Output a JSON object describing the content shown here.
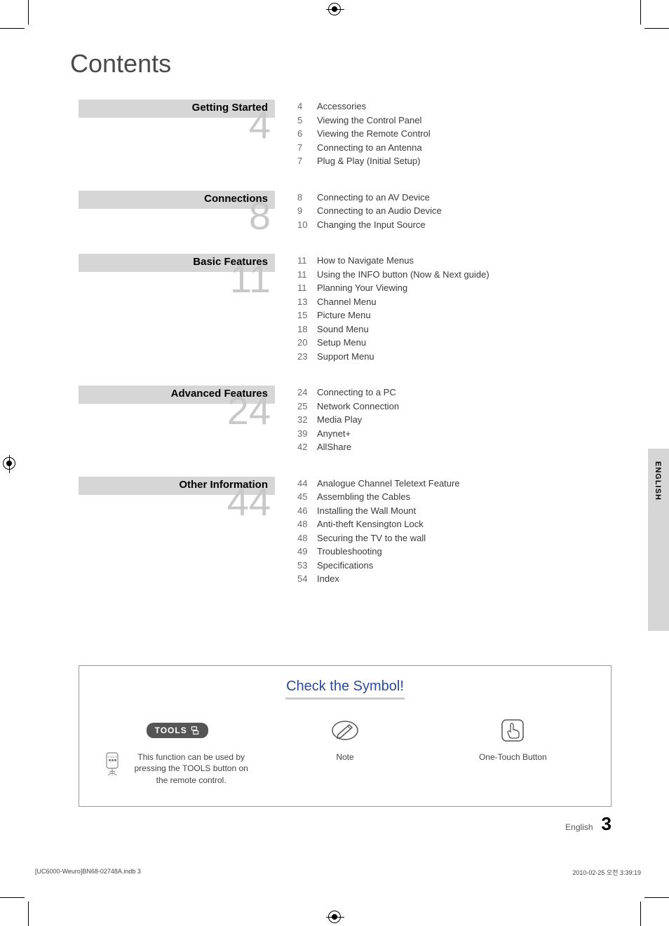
{
  "title": "Contents",
  "sections": [
    {
      "label": "Getting Started",
      "start_page": "4",
      "items": [
        {
          "pg": "4",
          "txt": "Accessories"
        },
        {
          "pg": "5",
          "txt": "Viewing the Control Panel"
        },
        {
          "pg": "6",
          "txt": "Viewing the Remote Control"
        },
        {
          "pg": "7",
          "txt": "Connecting to an Antenna"
        },
        {
          "pg": "7",
          "txt": "Plug & Play (Initial Setup)"
        }
      ]
    },
    {
      "label": "Connections",
      "start_page": "8",
      "items": [
        {
          "pg": "8",
          "txt": "Connecting to an AV Device"
        },
        {
          "pg": "9",
          "txt": "Connecting to an Audio Device"
        },
        {
          "pg": "10",
          "txt": "Changing the Input Source"
        }
      ]
    },
    {
      "label": "Basic Features",
      "start_page": "11",
      "items": [
        {
          "pg": "11",
          "txt": "How to Navigate Menus"
        },
        {
          "pg": "11",
          "txt": "Using the INFO button (Now & Next guide)"
        },
        {
          "pg": "11",
          "txt": "Planning Your Viewing"
        },
        {
          "pg": "13",
          "txt": "Channel Menu"
        },
        {
          "pg": "15",
          "txt": "Picture Menu"
        },
        {
          "pg": "18",
          "txt": "Sound Menu"
        },
        {
          "pg": "20",
          "txt": "Setup Menu"
        },
        {
          "pg": "23",
          "txt": "Support Menu"
        }
      ]
    },
    {
      "label": "Advanced Features",
      "start_page": "24",
      "items": [
        {
          "pg": "24",
          "txt": "Connecting to a PC"
        },
        {
          "pg": "25",
          "txt": "Network Connection"
        },
        {
          "pg": "32",
          "txt": "Media Play"
        },
        {
          "pg": "39",
          "txt": "Anynet+"
        },
        {
          "pg": "42",
          "txt": "AllShare"
        }
      ]
    },
    {
      "label": "Other Information",
      "start_page": "44",
      "items": [
        {
          "pg": "44",
          "txt": "Analogue Channel Teletext Feature"
        },
        {
          "pg": "45",
          "txt": "Assembling the Cables"
        },
        {
          "pg": "46",
          "txt": "Installing the Wall Mount"
        },
        {
          "pg": "48",
          "txt": "Anti-theft Kensington Lock"
        },
        {
          "pg": "48",
          "txt": "Securing the TV to the wall"
        },
        {
          "pg": "49",
          "txt": "Troubleshooting"
        },
        {
          "pg": "53",
          "txt": "Specifications"
        },
        {
          "pg": "54",
          "txt": "Index"
        }
      ]
    }
  ],
  "lang_tab": "ENGLISH",
  "symbol_box": {
    "title": "Check the Symbol!",
    "tools": {
      "badge": "TOOLS",
      "caption": "This function can be used by pressing the TOOLS button on the remote control."
    },
    "note": "Note",
    "onetouch": "One-Touch Button"
  },
  "page_footer": {
    "lang": "English",
    "num": "3"
  },
  "print_footer": {
    "left": "[UC6000-Weuro]BN68-02748A.indb   3",
    "right": "2010-02-25   오전 3:39:19"
  },
  "colors": {
    "section_header_bg": "#d6d6d6",
    "big_num": "#c8c8c8",
    "title_color": "#4a4a4a",
    "symbol_title_color": "#2a4a9a"
  }
}
